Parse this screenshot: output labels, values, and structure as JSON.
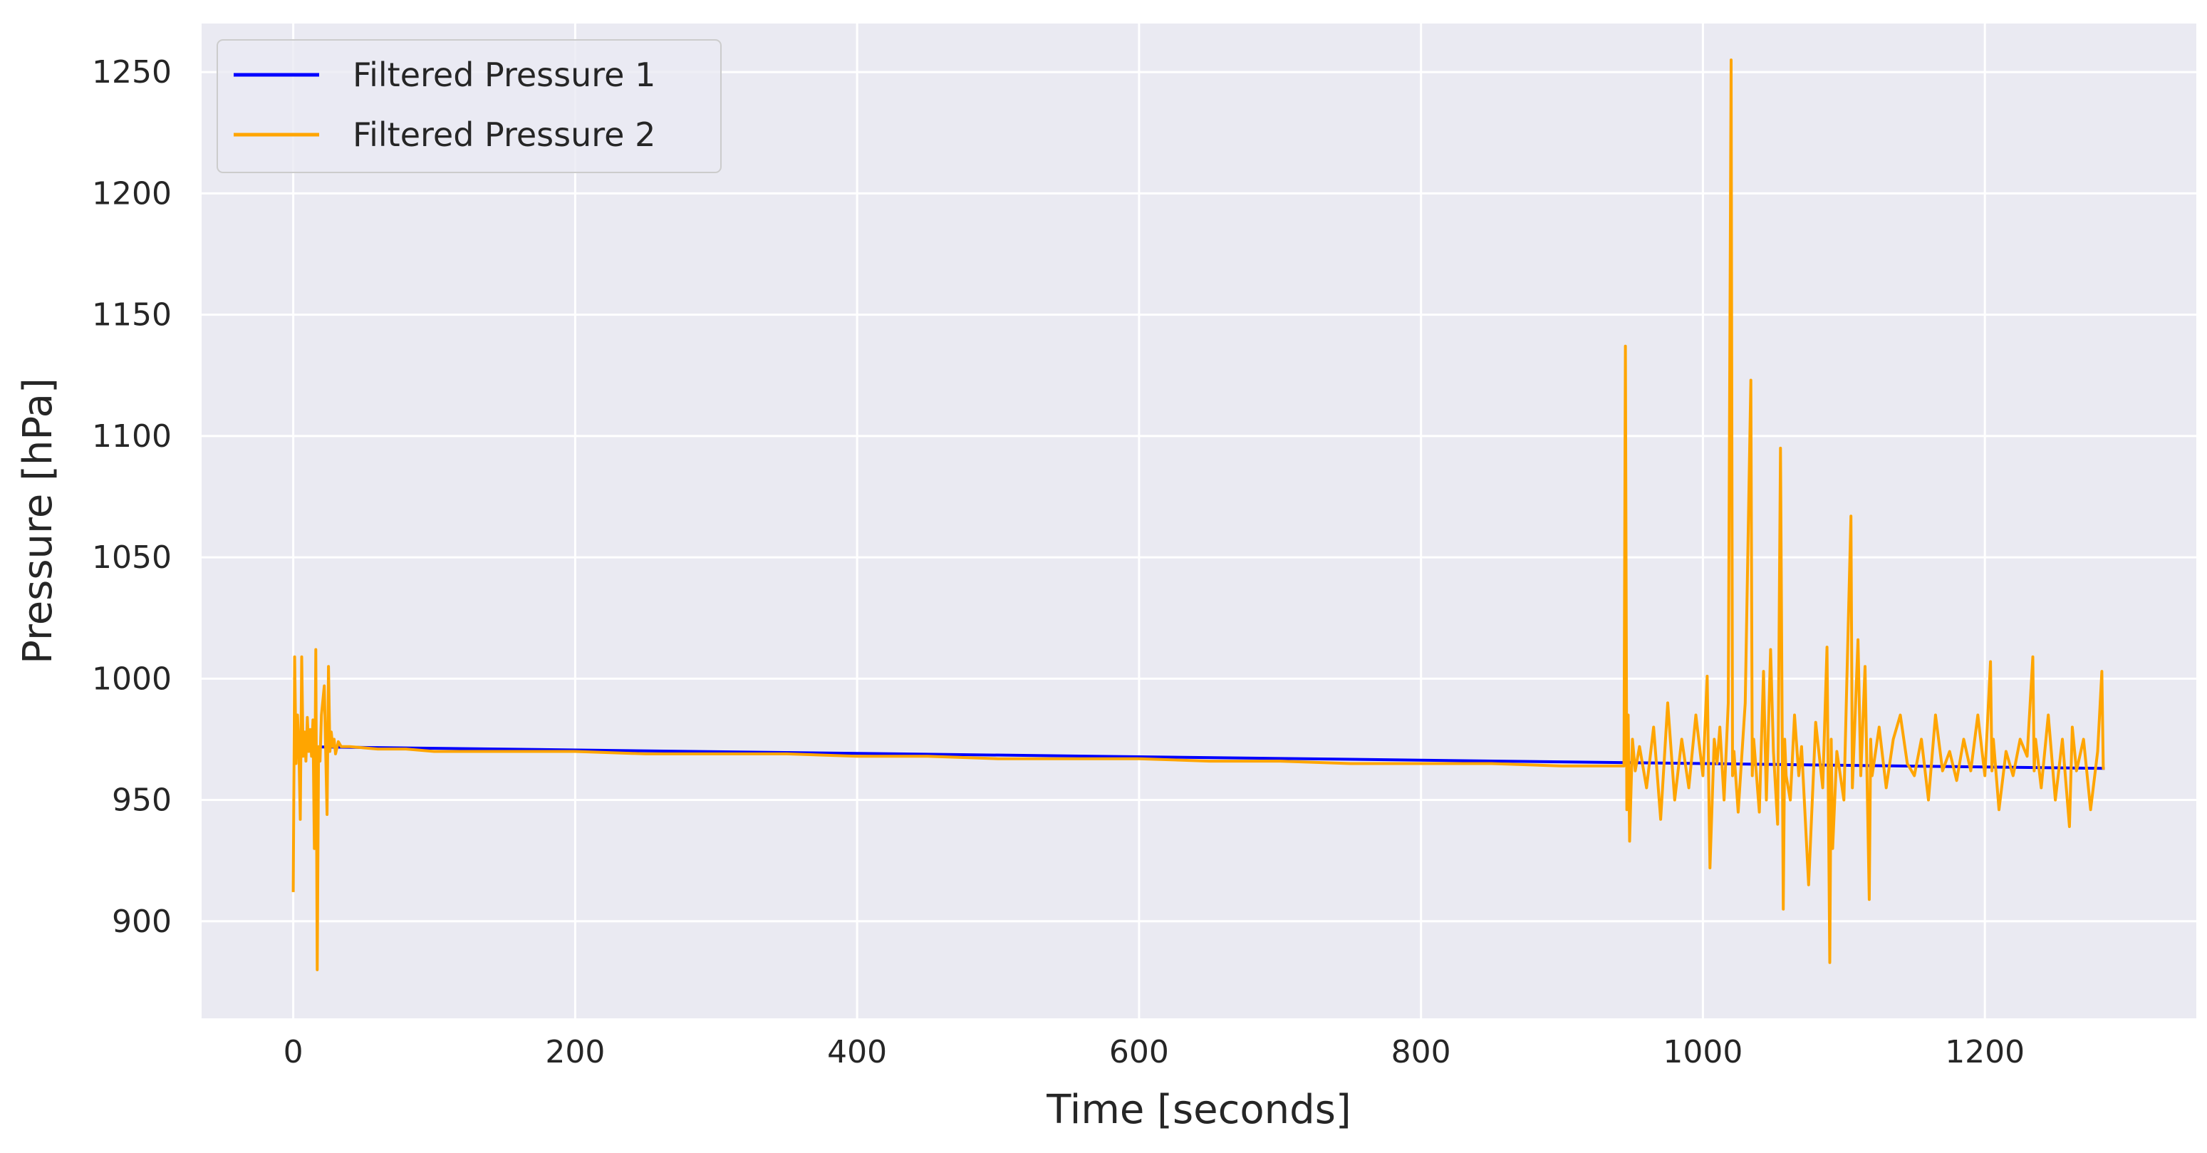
{
  "chart_data": {
    "type": "line",
    "title": "",
    "xlabel": "Time [seconds]",
    "ylabel": "Pressure [hPa]",
    "xlim": [
      -65,
      1350
    ],
    "ylim": [
      860,
      1270
    ],
    "xticks": [
      0,
      200,
      400,
      600,
      800,
      1000,
      1200
    ],
    "yticks": [
      900,
      950,
      1000,
      1050,
      1100,
      1150,
      1200,
      1250
    ],
    "grid": true,
    "legend_position": "top-left",
    "series": [
      {
        "name": "Filtered Pressure 1",
        "color": "#0000ff",
        "x": [
          0,
          1285
        ],
        "y": [
          972,
          963
        ]
      },
      {
        "name": "Filtered Pressure 2",
        "color": "#ffa500",
        "x": [
          0,
          1,
          2,
          3,
          4,
          5,
          6,
          7,
          8,
          9,
          10,
          11,
          12,
          13,
          14,
          15,
          16,
          17,
          18,
          19,
          20,
          22,
          24,
          25,
          26,
          27,
          28,
          29,
          30,
          32,
          34,
          40,
          60,
          80,
          100,
          150,
          200,
          250,
          300,
          350,
          400,
          450,
          500,
          550,
          600,
          650,
          700,
          750,
          800,
          850,
          900,
          944,
          945,
          946,
          947,
          948,
          950,
          952,
          955,
          960,
          965,
          970,
          975,
          980,
          985,
          990,
          995,
          1000,
          1003,
          1005,
          1008,
          1010,
          1012,
          1015,
          1018,
          1020,
          1021,
          1022,
          1025,
          1030,
          1034,
          1035,
          1036,
          1040,
          1043,
          1045,
          1048,
          1050,
          1053,
          1055,
          1057,
          1058,
          1059,
          1062,
          1065,
          1068,
          1070,
          1075,
          1080,
          1085,
          1088,
          1090,
          1091,
          1092,
          1095,
          1100,
          1105,
          1106,
          1107,
          1110,
          1112,
          1115,
          1118,
          1119,
          1120,
          1125,
          1130,
          1135,
          1140,
          1145,
          1150,
          1155,
          1160,
          1165,
          1170,
          1175,
          1180,
          1185,
          1190,
          1195,
          1200,
          1204,
          1205,
          1206,
          1210,
          1215,
          1220,
          1225,
          1230,
          1234,
          1235,
          1236,
          1240,
          1245,
          1250,
          1255,
          1260,
          1262,
          1265,
          1270,
          1275,
          1280,
          1283,
          1284,
          1285
        ],
        "y": [
          912,
          1009,
          965,
          985,
          972,
          942,
          1009,
          968,
          978,
          966,
          984,
          970,
          979,
          968,
          983,
          930,
          1012,
          880,
          972,
          966,
          985,
          997,
          944,
          1005,
          970,
          978,
          972,
          975,
          969,
          974,
          972,
          972,
          971,
          971,
          970,
          970,
          970,
          969,
          969,
          969,
          968,
          968,
          967,
          967,
          967,
          966,
          966,
          965,
          965,
          965,
          964,
          964,
          1137,
          946,
          985,
          933,
          975,
          962,
          972,
          955,
          980,
          942,
          990,
          950,
          975,
          955,
          985,
          960,
          1001,
          922,
          975,
          965,
          980,
          950,
          990,
          1255,
          960,
          970,
          945,
          990,
          1123,
          960,
          975,
          945,
          1003,
          950,
          1012,
          970,
          940,
          1095,
          905,
          975,
          960,
          950,
          985,
          960,
          972,
          915,
          982,
          955,
          1013,
          883,
          975,
          930,
          970,
          950,
          1067,
          955,
          970,
          1016,
          960,
          1005,
          909,
          975,
          960,
          980,
          955,
          975,
          985,
          965,
          960,
          975,
          950,
          985,
          962,
          970,
          958,
          975,
          962,
          985,
          960,
          1007,
          962,
          975,
          946,
          970,
          960,
          975,
          968,
          1009,
          962,
          975,
          955,
          985,
          950,
          975,
          939,
          980,
          962,
          975,
          946,
          970,
          1003,
          963,
          963
        ]
      }
    ]
  }
}
